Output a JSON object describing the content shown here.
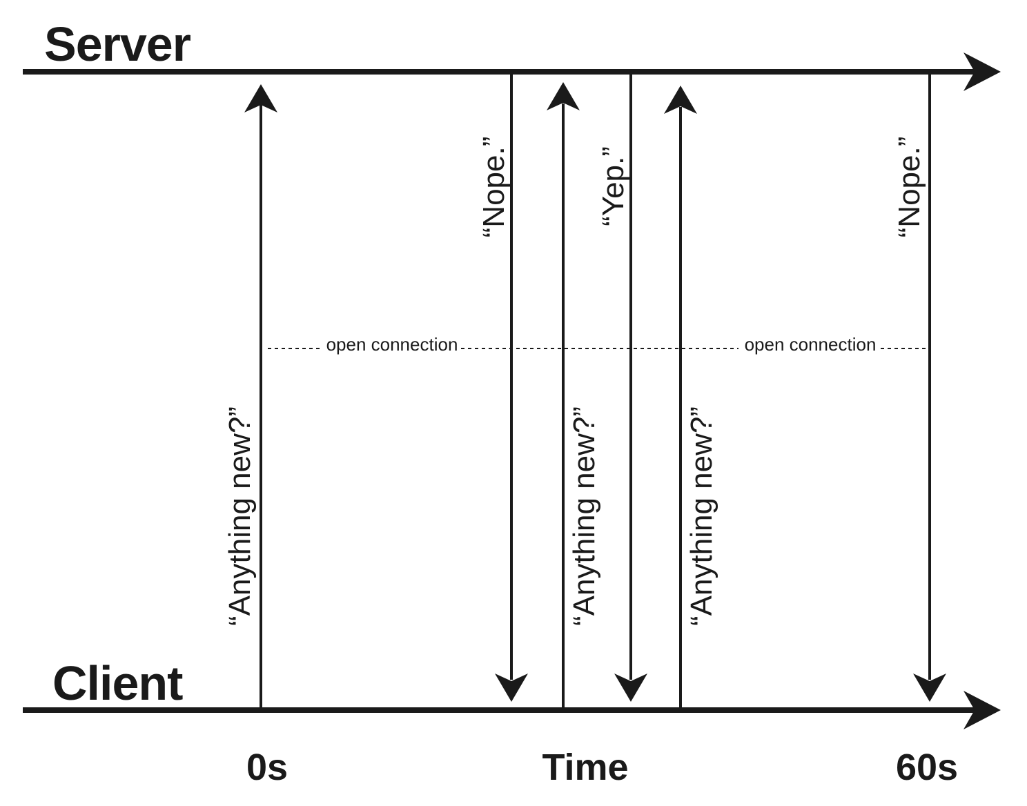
{
  "lanes": {
    "server_label": "Server",
    "client_label": "Client"
  },
  "time_axis": {
    "start_label": "0s",
    "middle_label": "Time",
    "end_label": "60s"
  },
  "messages": {
    "request_1": "“Anything new?”",
    "response_1": "“Nope.”",
    "request_2": "“Anything new?”",
    "response_2": "“Yep.”",
    "request_3": "“Anything new?”",
    "response_3": "“Nope.”"
  },
  "connections": {
    "first": "open connection",
    "second": "open connection"
  },
  "colors": {
    "ink": "#1a1a1a",
    "background": "#ffffff"
  }
}
